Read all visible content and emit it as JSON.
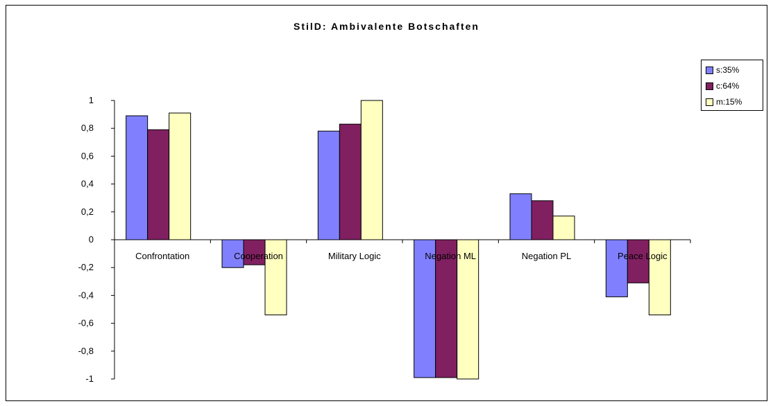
{
  "chart_data": {
    "type": "bar",
    "title": "StilD: Ambivalente Botschaften",
    "xlabel": "",
    "ylabel": "",
    "ylim": [
      -1,
      1
    ],
    "yticks": [
      1,
      0.8,
      0.6,
      0.4,
      0.2,
      0,
      -0.2,
      -0.4,
      -0.6,
      -0.8,
      -1
    ],
    "ytick_labels": [
      "1",
      "0,8",
      "0,6",
      "0,4",
      "0,2",
      "0",
      "-0,2",
      "-0,4",
      "-0,6",
      "-0,8",
      "-1"
    ],
    "categories": [
      "Confrontation",
      "Cooperation",
      "Military Logic",
      "Negation ML",
      "Negation PL",
      "Peace Logic"
    ],
    "series": [
      {
        "name": "s:35%",
        "color": "#8080ff",
        "values": [
          0.89,
          -0.2,
          0.78,
          -0.99,
          0.33,
          -0.41
        ]
      },
      {
        "name": "c:64%",
        "color": "#802060",
        "values": [
          0.79,
          -0.18,
          0.83,
          -0.99,
          0.28,
          -0.31
        ]
      },
      {
        "name": "m:15%",
        "color": "#ffffc0",
        "values": [
          0.91,
          -0.54,
          1.0,
          -1.0,
          0.17,
          -0.54
        ]
      }
    ],
    "grid": false,
    "legend_position": "top-right"
  }
}
